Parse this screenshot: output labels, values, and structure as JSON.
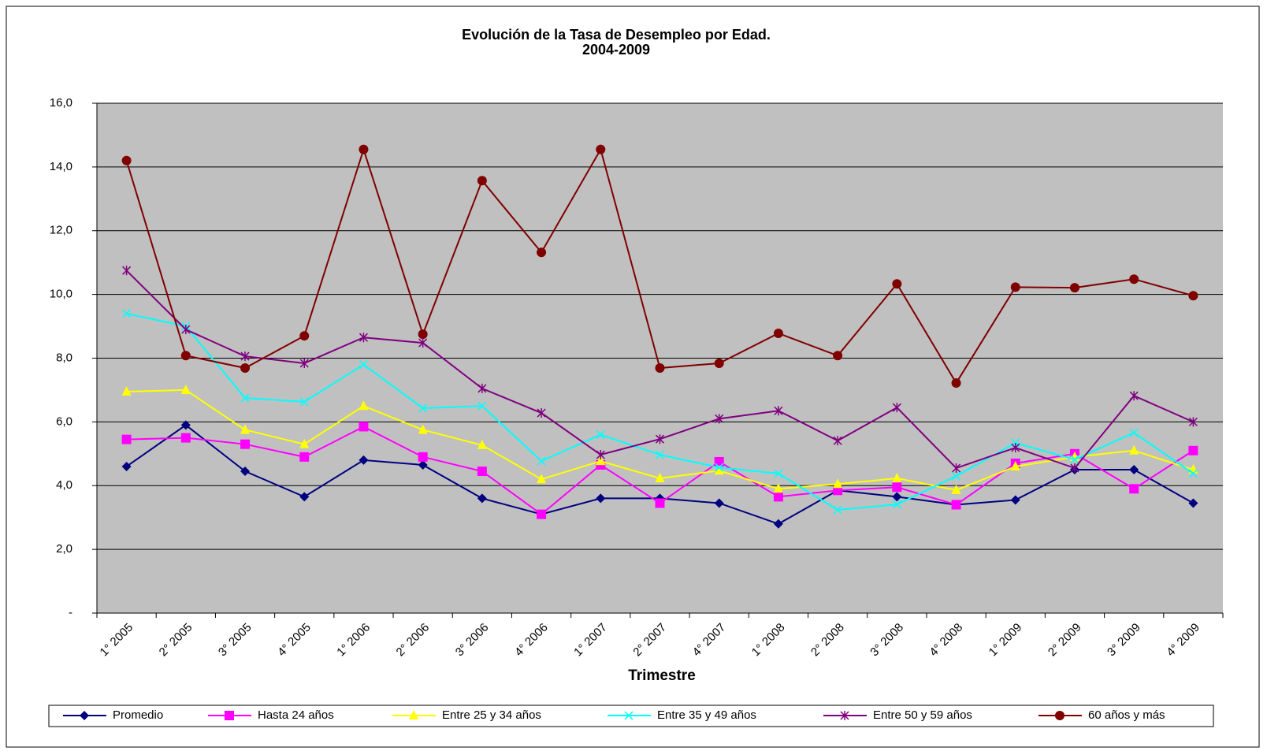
{
  "chart_data": {
    "type": "line",
    "title": "Evolución de la Tasa de Desempleo por Edad.",
    "subtitle": "2004-2009",
    "x_label": "Trimestre",
    "categories": [
      "1° 2005",
      "2° 2005",
      "3° 2005",
      "4° 2005",
      "1° 2006",
      "2° 2006",
      "3° 2006",
      "4° 2006",
      "1° 2007",
      "2° 2007",
      "4° 2007",
      "1° 2008",
      "2° 2008",
      "3° 2008",
      "4° 2008",
      "1° 2009",
      "2° 2009",
      "3° 2009",
      "4° 2009"
    ],
    "ylim": [
      0,
      16
    ],
    "yticks": [
      {
        "value": 0,
        "label": "-"
      },
      {
        "value": 2,
        "label": "2,0"
      },
      {
        "value": 4,
        "label": "4,0"
      },
      {
        "value": 6,
        "label": "6,0"
      },
      {
        "value": 8,
        "label": "8,0"
      },
      {
        "value": 10,
        "label": "10,0"
      },
      {
        "value": 12,
        "label": "12,0"
      },
      {
        "value": 14,
        "label": "14,0"
      },
      {
        "value": 16,
        "label": "16,0"
      }
    ],
    "grid": true,
    "legend": "bottom",
    "series": [
      {
        "name": "Promedio",
        "color": "#000080",
        "marker": "diamond",
        "values": [
          4.6,
          5.9,
          4.45,
          3.65,
          4.8,
          4.65,
          3.6,
          3.1,
          3.6,
          3.6,
          3.45,
          2.8,
          3.85,
          3.65,
          3.4,
          3.55,
          4.5,
          4.5,
          3.45
        ]
      },
      {
        "name": "Hasta 24 años",
        "color": "#ff00ff",
        "marker": "square",
        "values": [
          5.45,
          5.5,
          5.3,
          4.9,
          5.85,
          4.9,
          4.45,
          3.1,
          4.65,
          3.45,
          4.75,
          3.65,
          3.85,
          3.95,
          3.4,
          4.7,
          5.0,
          3.9,
          5.1
        ]
      },
      {
        "name": "Entre 25 y 34 años",
        "color": "#ffff00",
        "marker": "triangle",
        "values": [
          6.95,
          7.0,
          5.75,
          5.3,
          6.5,
          5.75,
          5.27,
          4.2,
          4.77,
          4.23,
          4.47,
          3.9,
          4.05,
          4.23,
          3.86,
          4.6,
          4.9,
          5.1,
          4.5
        ]
      },
      {
        "name": "Entre 35 y 49 años",
        "color": "#00ffff",
        "marker": "x",
        "values": [
          9.4,
          9.0,
          6.75,
          6.63,
          7.8,
          6.43,
          6.5,
          4.77,
          5.6,
          4.97,
          4.57,
          4.38,
          3.24,
          3.41,
          4.3,
          5.34,
          4.82,
          5.66,
          4.38
        ]
      },
      {
        "name": "Entre 50 y 59 años",
        "color": "#800080",
        "marker": "star",
        "values": [
          10.75,
          8.9,
          8.06,
          7.84,
          8.65,
          8.48,
          7.05,
          6.28,
          4.97,
          5.46,
          6.1,
          6.35,
          5.41,
          6.45,
          4.55,
          5.19,
          4.55,
          6.82,
          6.0
        ]
      },
      {
        "name": "60 años y más",
        "color": "#800000",
        "marker": "circle",
        "values": [
          14.2,
          8.08,
          7.69,
          8.7,
          14.55,
          8.75,
          13.57,
          11.32,
          14.55,
          7.69,
          7.84,
          8.78,
          8.08,
          10.33,
          7.22,
          10.23,
          10.21,
          10.48,
          9.96
        ]
      }
    ]
  }
}
